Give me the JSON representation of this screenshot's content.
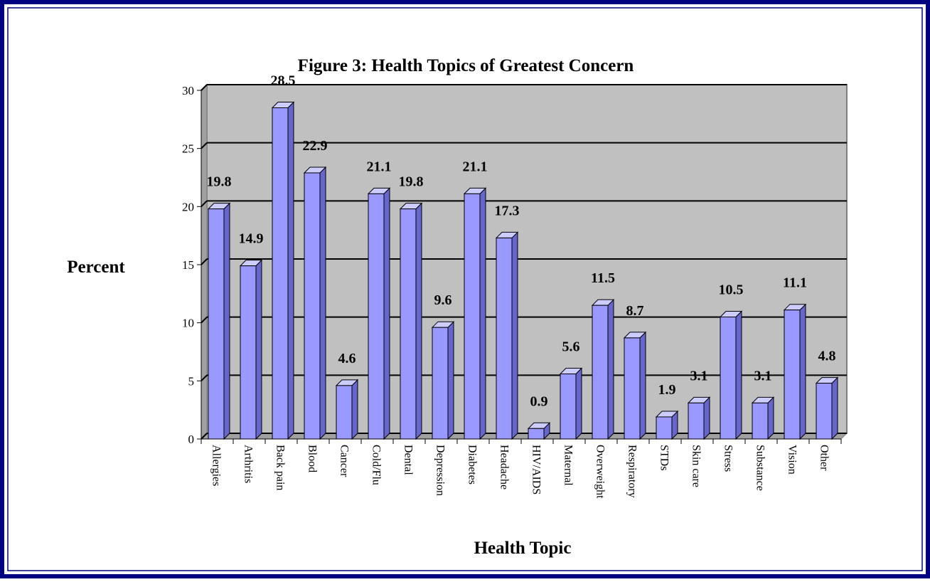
{
  "chart_data": {
    "type": "bar",
    "title": "Figure 3: Health Topics of Greatest Concern",
    "y_label": "Percent",
    "x_label": "Health Topic",
    "categories": [
      "Allergies",
      "Arthritis",
      "Back pain",
      "Blood",
      "Cancer",
      "Cold/Flu",
      "Dental",
      "Depression",
      "Diabetes",
      "Headache",
      "HIV/AIDS",
      "Maternal",
      "Overweight",
      "Respiratory",
      "STDs",
      "Skin care",
      "Stress",
      "Substance",
      "Vision",
      "Other"
    ],
    "values": [
      19.8,
      14.9,
      28.5,
      22.9,
      4.6,
      21.1,
      19.8,
      9.6,
      21.1,
      17.3,
      0.9,
      5.6,
      11.5,
      8.7,
      1.9,
      3.1,
      10.5,
      3.1,
      11.1,
      4.8
    ],
    "color": "#9999ff",
    "ylim": [
      0,
      30
    ],
    "yticks": [
      0,
      5,
      10,
      15,
      20,
      25,
      30
    ],
    "grid": true
  }
}
